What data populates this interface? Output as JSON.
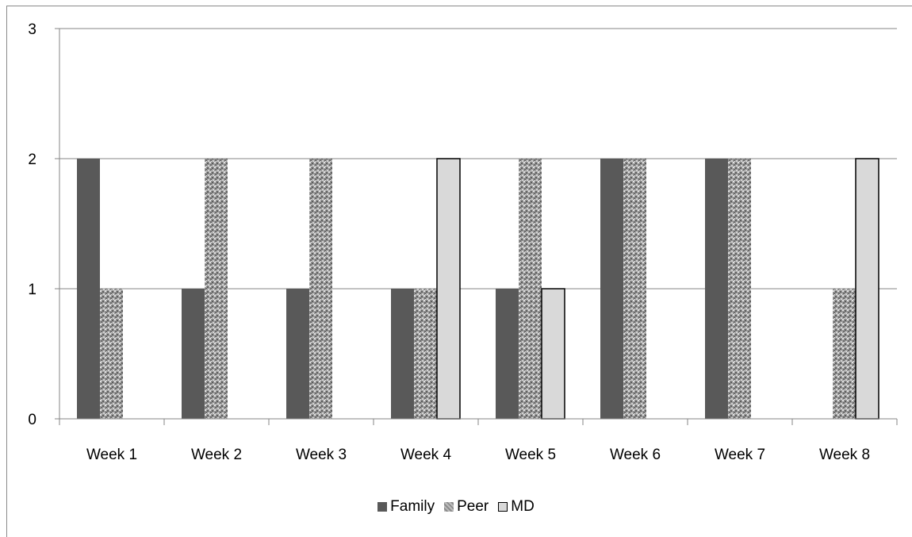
{
  "chart_data": {
    "type": "bar",
    "categories": [
      "Week 1",
      "Week 2",
      "Week 3",
      "Week 4",
      "Week 5",
      "Week 6",
      "Week 7",
      "Week 8"
    ],
    "series": [
      {
        "name": "Family",
        "values": [
          2,
          1,
          1,
          1,
          1,
          2,
          2,
          0
        ],
        "color": "#595959"
      },
      {
        "name": "Peer",
        "values": [
          1,
          2,
          2,
          1,
          2,
          2,
          2,
          1
        ],
        "color": "#a6a6a6"
      },
      {
        "name": "MD",
        "values": [
          0,
          0,
          0,
          2,
          1,
          0,
          0,
          2
        ],
        "color": "#d9d9d9"
      }
    ],
    "yticks": [
      "0",
      "1",
      "2",
      "3"
    ],
    "ylim": [
      0,
      3
    ],
    "grid": true,
    "legend_position": "bottom"
  }
}
